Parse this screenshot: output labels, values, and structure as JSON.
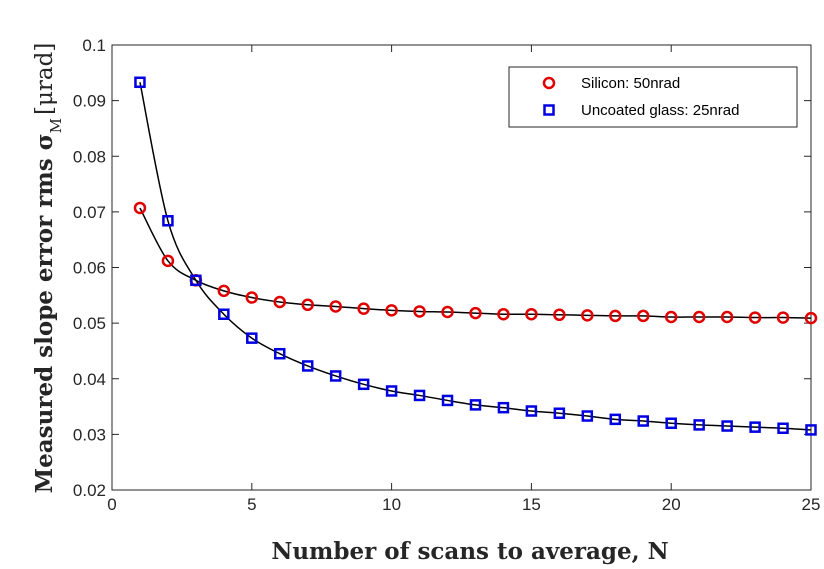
{
  "chart_data": {
    "type": "scatter",
    "title": "",
    "xlabel": "Number of scans to average, N",
    "ylabel": "Measured slope error rms σ",
    "ylabel_subscript": "M",
    "ylabel_unit": "[μrad]",
    "xlim": [
      0,
      25
    ],
    "ylim": [
      0.02,
      0.1
    ],
    "xticks": [
      0,
      5,
      10,
      15,
      20,
      25
    ],
    "xtick_labels": [
      "0",
      "5",
      "10",
      "15",
      "20",
      "25"
    ],
    "yticks": [
      0.02,
      0.03,
      0.04,
      0.05,
      0.06,
      0.07,
      0.08,
      0.09,
      0.1
    ],
    "ytick_labels": [
      "0.02",
      "0.03",
      "0.04",
      "0.05",
      "0.06",
      "0.07",
      "0.08",
      "0.09",
      "0.1"
    ],
    "grid": false,
    "legend_position": "top-right",
    "x": [
      1,
      2,
      3,
      4,
      5,
      6,
      7,
      8,
      9,
      10,
      11,
      12,
      13,
      14,
      15,
      16,
      17,
      18,
      19,
      20,
      21,
      22,
      23,
      24,
      25
    ],
    "series": [
      {
        "name": "Silicon: 50nrad",
        "marker": "circle",
        "color": "#e00000",
        "values": [
          0.0707,
          0.0612,
          0.0577,
          0.0558,
          0.0546,
          0.0538,
          0.0533,
          0.053,
          0.0526,
          0.0523,
          0.0521,
          0.052,
          0.0518,
          0.0516,
          0.0516,
          0.0515,
          0.0514,
          0.0513,
          0.0513,
          0.0511,
          0.0511,
          0.0511,
          0.051,
          0.051,
          0.0509
        ]
      },
      {
        "name": "Uncoated glass: 25nrad",
        "marker": "square",
        "color": "#0000e0",
        "values": [
          0.0933,
          0.0684,
          0.0577,
          0.0516,
          0.0473,
          0.0445,
          0.0423,
          0.0405,
          0.039,
          0.0378,
          0.037,
          0.0361,
          0.0353,
          0.0348,
          0.0342,
          0.0338,
          0.0333,
          0.0327,
          0.0324,
          0.032,
          0.0317,
          0.0315,
          0.0313,
          0.0311,
          0.0308
        ]
      }
    ]
  }
}
